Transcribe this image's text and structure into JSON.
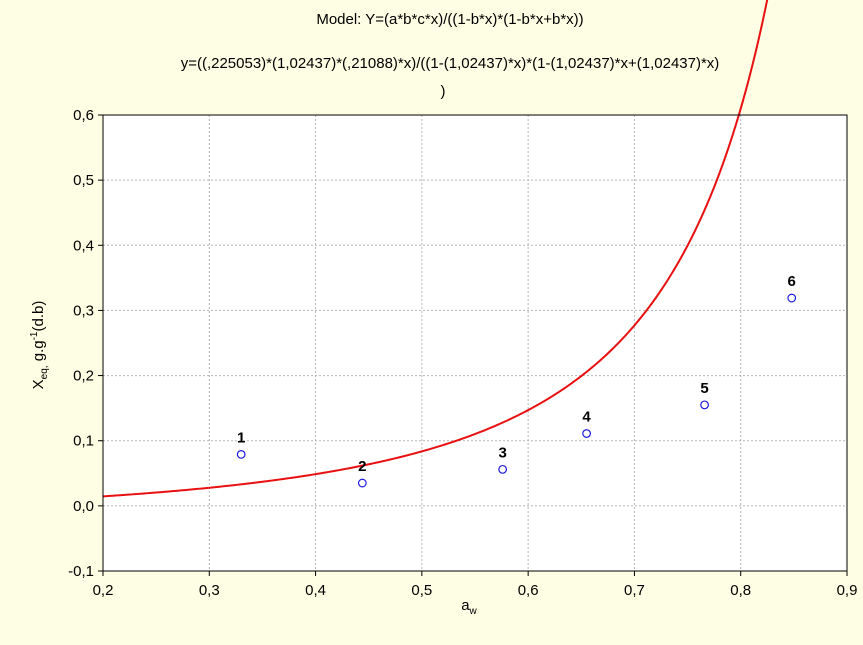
{
  "chart_data": {
    "type": "scatter",
    "title_lines": [
      "Model: Y=(a*b*c*x)/((1-b*x)*(1-b*x+b*x))",
      "y=((,225053)*(1,02437)*(,21088)*x)/((1-(1,02437)*x)*(1-(1,02437)*x+(1,02437)*x)",
      ")"
    ],
    "xlabel_main": "a",
    "xlabel_sub": "w",
    "ylabel_main": "X",
    "ylabel_sub": "eq,",
    "ylabel_rest": " g.g",
    "ylabel_sup": "-1",
    "ylabel_tail": "(d.b)",
    "xlim": [
      0.2,
      0.9
    ],
    "ylim": [
      -0.1,
      0.6
    ],
    "xticks": [
      0.2,
      0.3,
      0.4,
      0.5,
      0.6,
      0.7,
      0.8,
      0.9
    ],
    "xtick_labels": [
      "0,2",
      "0,3",
      "0,4",
      "0,5",
      "0,6",
      "0,7",
      "0,8",
      "0,9"
    ],
    "yticks": [
      -0.1,
      0.0,
      0.1,
      0.2,
      0.3,
      0.4,
      0.5,
      0.6
    ],
    "ytick_labels": [
      "-0,1",
      "0,0",
      "0,1",
      "0,2",
      "0,3",
      "0,4",
      "0,5",
      "0,6"
    ],
    "grid": true,
    "points": [
      {
        "label": "1",
        "x": 0.33,
        "y": 0.079
      },
      {
        "label": "2",
        "x": 0.444,
        "y": 0.035
      },
      {
        "label": "3",
        "x": 0.576,
        "y": 0.056
      },
      {
        "label": "4",
        "x": 0.655,
        "y": 0.111
      },
      {
        "label": "5",
        "x": 0.766,
        "y": 0.155
      },
      {
        "label": "6",
        "x": 0.848,
        "y": 0.319
      }
    ],
    "model": {
      "a": 0.225053,
      "b": 1.02437,
      "c": 0.21088
    },
    "colors": {
      "points": "#1a1adc",
      "curve": "#e81010",
      "background": "#fefee4",
      "plot_area": "#ffffff"
    }
  }
}
